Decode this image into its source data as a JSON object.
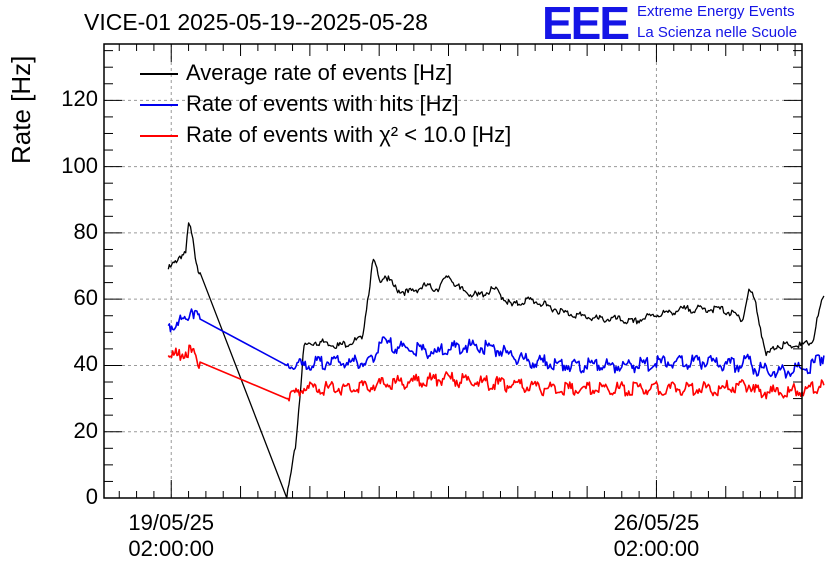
{
  "chart_data": {
    "type": "line",
    "title": "VICE-01 2025-05-19--2025-05-28",
    "ylabel": "Rate [Hz]",
    "xlabel": "",
    "ylim": [
      0,
      137
    ],
    "xlim_days_from_start": [
      -0.97,
      9.1
    ],
    "grid": true,
    "legend_position": "top-left",
    "x_ticks": [
      {
        "date": "19/05/25",
        "time": "02:00:00"
      },
      {
        "date": "26/05/25",
        "time": "02:00:00"
      }
    ],
    "y_ticks": [
      0,
      20,
      40,
      60,
      80,
      100,
      120
    ],
    "series": [
      {
        "name": "Average rate of events [Hz]",
        "color": "#000000",
        "x": [
          "19/05/25 01:00",
          "19/05/25 02:00",
          "19/05/25 03:00",
          "19/05/25 05:00",
          "19/05/25 07:00",
          "19/05/25 08:00",
          "19/05/25 09:00",
          "19/05/25 10:00",
          "19/05/25 11:00",
          "19/05/25 12:00",
          "20/05/25 18:00",
          "20/05/25 21:00",
          "21/05/25 00:00",
          "21/05/25 04:00",
          "21/05/25 08:00",
          "21/05/25 12:00",
          "21/05/25 20:00",
          "22/05/25 00:00",
          "22/05/25 02:00",
          "22/05/25 04:00",
          "22/05/25 08:00",
          "22/05/25 12:00",
          "22/05/25 18:00",
          "22/05/25 22:00",
          "23/05/25 02:00",
          "23/05/25 06:00",
          "23/05/25 12:00",
          "23/05/25 18:00",
          "24/05/25 00:00",
          "24/05/25 06:00",
          "24/05/25 12:00",
          "24/05/25 18:00",
          "25/05/25 00:00",
          "25/05/25 06:00",
          "25/05/25 12:00",
          "25/05/25 18:00",
          "26/05/25 00:00",
          "26/05/25 06:00",
          "26/05/25 12:00",
          "26/05/25 18:00",
          "27/05/25 00:00",
          "27/05/25 03:00",
          "27/05/25 06:00",
          "27/05/25 08:00",
          "27/05/25 10:00",
          "27/05/25 12:00",
          "27/05/25 16:00",
          "27/05/25 20:00",
          "28/05/25 00:00",
          "28/05/25 04:00",
          "28/05/25 08:00",
          "28/05/25 10:00",
          "28/05/25 12:00"
        ],
        "y": [
          69,
          70,
          71,
          73,
          74,
          83,
          80,
          75,
          70,
          68,
          0,
          15,
          46,
          47,
          47,
          46,
          48,
          72,
          66,
          67,
          63,
          62,
          64,
          63,
          67,
          63,
          61,
          63,
          58,
          60,
          58,
          56,
          55,
          54,
          54,
          53,
          55,
          56,
          57,
          57,
          57,
          56,
          55,
          54,
          63,
          60,
          43,
          46,
          46,
          46,
          47,
          55,
          61
        ]
      },
      {
        "name": "Rate of events with hits [Hz]",
        "color": "#0000ee",
        "x": [
          "19/05/25 01:00",
          "19/05/25 04:00",
          "19/05/25 07:00",
          "19/05/25 09:00",
          "19/05/25 12:00",
          "20/05/25 18:00",
          "21/05/25 00:00",
          "21/05/25 08:00",
          "21/05/25 16:00",
          "22/05/25 00:00",
          "22/05/25 02:00",
          "22/05/25 12:00",
          "22/05/25 22:00",
          "23/05/25 08:00",
          "23/05/25 18:00",
          "24/05/25 00:00",
          "24/05/25 06:00",
          "24/05/25 12:00",
          "24/05/25 18:00",
          "25/05/25 06:00",
          "25/05/25 18:00",
          "26/05/25 06:00",
          "26/05/25 18:00",
          "27/05/25 06:00",
          "27/05/25 10:00",
          "27/05/25 12:00",
          "27/05/25 20:00",
          "28/05/25 06:00",
          "28/05/25 12:00"
        ],
        "y": [
          52,
          53,
          54,
          57,
          54,
          40,
          40,
          41,
          41,
          41,
          47,
          45,
          44,
          46,
          45,
          43,
          41,
          41,
          40,
          40,
          40,
          41,
          41,
          40,
          42,
          39,
          38,
          39,
          43
        ]
      },
      {
        "name": "Rate of events with χ² < 10.0 [Hz]",
        "color": "#ff0000",
        "x": [
          "19/05/25 01:00",
          "19/05/25 04:00",
          "19/05/25 07:00",
          "19/05/25 09:00",
          "19/05/25 12:00",
          "20/05/25 18:00",
          "21/05/25 00:00",
          "21/05/25 12:00",
          "22/05/25 00:00",
          "22/05/25 12:00",
          "23/05/25 00:00",
          "23/05/25 12:00",
          "24/05/25 00:00",
          "24/05/25 12:00",
          "25/05/25 00:00",
          "25/05/25 12:00",
          "26/05/25 00:00",
          "26/05/25 12:00",
          "27/05/25 00:00",
          "27/05/25 10:00",
          "27/05/25 12:00",
          "28/05/25 00:00",
          "28/05/25 12:00"
        ],
        "y": [
          43,
          43,
          44,
          44,
          41,
          30,
          33,
          33,
          34,
          35,
          36,
          35,
          34,
          33,
          33,
          33,
          33,
          33,
          33,
          34,
          32,
          32,
          34
        ]
      }
    ]
  },
  "logo": {
    "mark": "EEE",
    "line1": "Extreme Energy Events",
    "line2": "La Scienza nelle Scuole",
    "color": "#1515e6"
  }
}
